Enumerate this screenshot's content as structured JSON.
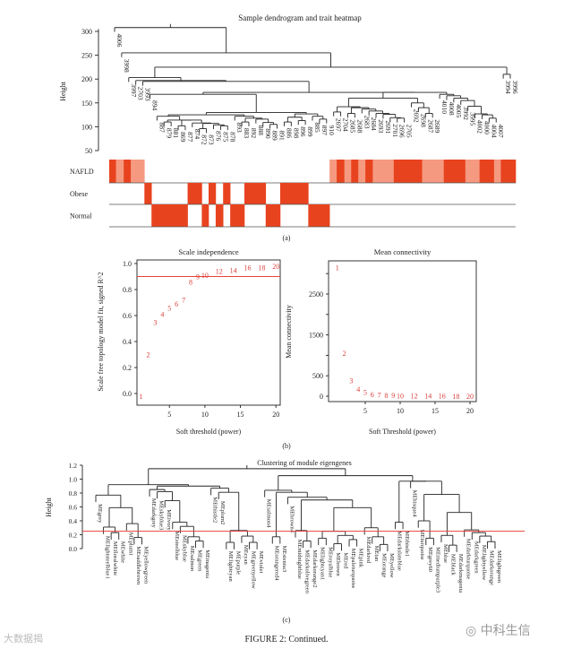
{
  "caption": "FIGURE 2: Continued.",
  "watermark_left": "大数据揭",
  "watermark_right": "中科生信",
  "colors": {
    "strong": "#e8431f",
    "light": "#f59a80",
    "red_text": "#d9403a",
    "threshold_line": "#e8433a"
  },
  "chart_data": [
    {
      "type": "dendrogram_heatmap",
      "panel_label": "(a)",
      "title": "Sample dendrogram and trait heatmap",
      "ylabel": "Height",
      "yticks": [
        50,
        100,
        150,
        200,
        250,
        300
      ],
      "leaves": [
        "4006",
        "3998",
        "3997",
        "2703",
        "3993",
        "894",
        "887",
        "879",
        "881",
        "869",
        "877",
        "874",
        "872",
        "873",
        "876",
        "875",
        "878",
        "893",
        "883",
        "892",
        "888",
        "890",
        "889",
        "891",
        "886",
        "898",
        "896",
        "899",
        "885",
        "897",
        "910",
        "2697",
        "2704",
        "2685",
        "2688",
        "2683",
        "2684",
        "2693",
        "2691",
        "2701",
        "2696",
        "2705",
        "2692",
        "2698",
        "2687",
        "2689",
        "4010",
        "4008",
        "4005",
        "3992",
        "3995",
        "4002",
        "4000",
        "4004",
        "4007",
        "3994",
        "3996"
      ],
      "tree": [
        308,
        0,
        [
          255,
          1,
          [
            225,
            [
              203,
              2,
              [
                197,
                3,
                [
                  195,
                  4,
                  [
                    172,
                    [
                      168,
                      5,
                      [
                        130,
                        [
                          125,
                          [
                            122,
                            6,
                            [
                              114,
                              [
                                110,
                                7,
                                8
                              ],
                              [
                                114,
                                [
                                  102,
                                  9,
                                  10
                                ],
                                [
                                  108,
                                  11,
                                  [
                                    107,
                                    [
                                      96,
                                      12,
                                      13
                                    ],
                                    [
                                      104,
                                      14,
                                      [
                                        102,
                                        15,
                                        16
                                      ]
                                    ]
                                  ]
                                ]
                              ]
                            ]
                          ],
                          [
                            122,
                            17,
                            [
                              118,
                              [
                                110,
                                18,
                                19
                              ],
                              [
                                116,
                                20,
                                [
                                  109,
                                  21,
                                  [
                                    105,
                                    22,
                                    23
                                  ]
                                ]
                              ]
                            ]
                          ]
                        ],
                        [
                          127,
                          [
                            120,
                            [
                              110,
                              24,
                              25
                            ],
                            [
                              113,
                              26,
                              27
                            ]
                          ],
                          [
                            122,
                            28,
                            [
                              116,
                              29,
                              30
                            ]
                          ]
                        ]
                      ]
                    ],
                    [
                      172,
                      [
                        160,
                        [
                          142,
                          [
                            131,
                            31,
                            32
                          ],
                          [
                            140,
                            [
                              128,
                              33,
                              34
                            ],
                            [
                              137,
                              35,
                              [
                                133,
                                36,
                                [
                                  128,
                                  37,
                                  [
                                    126,
                                    38,
                                    [
                                      119,
                                      39,
                                      [
                                        118,
                                        40,
                                        41
                                      ]
                                    ]
                                  ]
                                ]
                              ]
                            ]
                          ]
                        ],
                        [
                          150,
                          42,
                          [
                            140,
                            43,
                            [
                              128,
                              44,
                              45
                            ]
                          ]
                        ]
                      ],
                      [
                        168,
                        46,
                        [
                          165,
                          47,
                          [
                            160,
                            48,
                            [
                              155,
                              49,
                              [
                                143,
                                50,
                                [
                                  127,
                                  51,
                                  [
                                    125,
                                    52,
                                    [
                                      118,
                                      53,
                                      54
                                    ]
                                  ]
                                ]
                              ]
                            ]
                          ]
                        ]
                      ]
                    ]
                  ]
                ]
              ]
            ],
            [
              210,
              55,
              56
            ]
          ]
        ]
      ],
      "traits": [
        {
          "name": "NAFLD",
          "segments": [
            [
              22,
              2
            ],
            [
              25,
              1
            ],
            [
              23,
              2
            ],
            [
              44,
              1
            ],
            [
              600,
              0
            ],
            [
              23,
              1
            ],
            [
              25,
              2
            ],
            [
              22,
              1
            ],
            [
              23,
              2
            ],
            [
              23,
              1
            ],
            [
              24,
              2
            ],
            [
              68,
              1
            ],
            [
              92,
              2
            ],
            [
              70,
              1
            ],
            [
              70,
              2
            ],
            [
              46,
              1
            ],
            [
              47,
              2
            ],
            [
              22,
              1
            ],
            [
              48,
              2
            ]
          ]
        },
        {
          "name": "Obese",
          "segments": [
            [
              114,
              0
            ],
            [
              23,
              2
            ],
            [
              117,
              0
            ],
            [
              46,
              2
            ],
            [
              22,
              0
            ],
            [
              23,
              2
            ],
            [
              24,
              0
            ],
            [
              23,
              2
            ],
            [
              46,
              0
            ],
            [
              69,
              2
            ],
            [
              47,
              0
            ],
            [
              91,
              2
            ],
            [
              672,
              0
            ]
          ]
        },
        {
          "name": "Normal",
          "segments": [
            [
              137,
              0
            ],
            [
              117,
              2
            ],
            [
              46,
              0
            ],
            [
              22,
              2
            ],
            [
              23,
              0
            ],
            [
              24,
              2
            ],
            [
              23,
              0
            ],
            [
              46,
              2
            ],
            [
              69,
              0
            ],
            [
              47,
              2
            ],
            [
              91,
              0
            ],
            [
              69,
              2
            ],
            [
              603,
              0
            ]
          ]
        }
      ]
    },
    {
      "type": "scatter",
      "panel_label": "(b)",
      "title": "Scale independence",
      "xlabel": "Soft threshold (power)",
      "ylabel": "Scale free topology model fit, signed R^2",
      "xlim": [
        0.5,
        20.5
      ],
      "ylim": [
        -0.03,
        1.0
      ],
      "xticks": [
        5,
        10,
        15,
        20
      ],
      "yticks": [
        "0.0",
        "0.2",
        "0.4",
        "0.6",
        "0.8",
        "1.0"
      ],
      "hline": 0.9,
      "x": [
        1,
        2,
        3,
        4,
        5,
        6,
        7,
        8,
        9,
        10,
        12,
        14,
        16,
        18,
        20
      ],
      "y": [
        -0.02,
        0.3,
        0.55,
        0.61,
        0.66,
        0.69,
        0.72,
        0.86,
        0.9,
        0.91,
        0.94,
        0.95,
        0.97,
        0.97,
        0.98
      ]
    },
    {
      "type": "scatter",
      "title": "Mean connectivity",
      "xlabel": "Soft Threshold (power)",
      "ylabel": "Mean connectivity",
      "xlim": [
        0.5,
        20.5
      ],
      "ylim": [
        -100,
        3300
      ],
      "xticks": [
        5,
        10,
        15,
        20
      ],
      "yticks": [
        0,
        500,
        1500,
        2500
      ],
      "x": [
        1,
        2,
        3,
        4,
        5,
        6,
        7,
        8,
        9,
        10,
        12,
        14,
        16,
        18,
        20
      ],
      "y": [
        3150,
        1050,
        380,
        180,
        100,
        45,
        35,
        25,
        20,
        15,
        12,
        8,
        6,
        5,
        4
      ]
    },
    {
      "type": "dendrogram",
      "panel_label": "(c)",
      "title": "Clustering of module eigengenes",
      "ylabel": "Height",
      "yticks": [
        "0.0",
        "0.2",
        "0.4",
        "0.6",
        "0.8",
        "1.0",
        "1.2"
      ],
      "hline": 0.25,
      "leaves": [
        "MEgrey",
        "MElightsteelblue1",
        "MEfloralwhite",
        "MEwhite",
        "MEplum1",
        "MEsaddlebrown",
        "MEyellowgreen",
        "MEdarkgrey",
        "MEskyblue3",
        "MEivory",
        "MEsteelblue",
        "MEskyblue",
        "MEsalmon",
        "MEgreen",
        "MEmagenta",
        "MEthistle2",
        "MEplum2",
        "MElightcyan",
        "MEpurple",
        "MEcyan",
        "MEgreenyellow",
        "MEviolet",
        "MEsalmon4",
        "MEorangered4",
        "MEsienna3",
        "MEbrown4",
        "MEmidnightblue",
        "MEdarkolivegreen",
        "MEdarkorange2",
        "MElightcyan1",
        "MEroyalblue",
        "MEbrown",
        "MEred",
        "MEpaleturquoise",
        "MEpink",
        "MEdarkred",
        "MEtan",
        "MEorange",
        "MEyellow",
        "MEdarkslateblue",
        "MEthistle1",
        "MEbisque4",
        "MEturquoise",
        "MEgrey60",
        "MEmediumpurple3",
        "MEblue",
        "MEblack",
        "MEdarkmagenta",
        "MEdarkturquoise",
        "MEdarkgreen",
        "MElightyellow",
        "MEdarkorange",
        "MElightgreen"
      ],
      "tree": [
        1.15,
        [
          0.92,
          [
            0.77,
            0,
            [
              0.59,
              [
                0.31,
                1,
                [
                  0.23,
                  2,
                  3
                ]
              ],
              [
                0.36,
                4,
                [
                  0.16,
                  5,
                  6
                ]
              ]
            ]
          ],
          [
            0.9,
            [
              0.85,
              7,
              [
                0.82,
                8,
                [
                  0.69,
                  9,
                  [
                    0.38,
                    10,
                    [
                      0.32,
                      11,
                      [
                        0.17,
                        12,
                        [
                          0.11,
                          13,
                          14
                        ]
                      ]
                    ]
                  ]
                ]
              ]
            ],
            [
              0.87,
              15,
              [
                0.81,
                16,
                [
                  0.26,
                  [
                    0.09,
                    17,
                    18
                  ],
                  [
                    0.18,
                    19,
                    [
                      0.09,
                      20,
                      21
                    ]
                  ]
                ]
              ]
            ]
          ]
        ],
        [
          1.05,
          [
            0.84,
            22,
            [
              0.81,
              [
                0.17,
                23,
                24
              ],
              [
                0.74,
                25,
                [
                  0.7,
                  [
                    0.26,
                    26,
                    [
                      0.11,
                      27,
                      28
                    ]
                  ],
                  [
                    0.59,
                    [
                      0.25,
                      [
                        0.15,
                        29,
                        30
                      ],
                      [
                        0.19,
                        [
                          0.07,
                          31,
                          32
                        ],
                        [
                          0.13,
                          33,
                          34
                        ]
                      ]
                    ],
                    [
                      0.3,
                      35,
                      [
                        0.17,
                        36,
                        [
                          0.06,
                          37,
                          38
                        ]
                      ]
                    ]
                  ]
                ]
              ]
            ]
          ],
          [
            0.97,
            [
              0.38,
              39,
              40
            ],
            [
              0.97,
              41,
              [
                0.78,
                [
                  0.4,
                  42,
                  [
                    0.15,
                    43,
                    44
                  ]
                ],
                [
                  0.52,
                  [
                    0.19,
                    45,
                    [
                      0.05,
                      46,
                      47
                    ]
                  ],
                  [
                    0.27,
                    48,
                    [
                      0.23,
                      49,
                      [
                        0.18,
                        50,
                        [
                          0.1,
                          51,
                          52
                        ]
                      ]
                    ]
                  ]
                ]
              ]
            ]
          ]
        ]
      ]
    }
  ]
}
